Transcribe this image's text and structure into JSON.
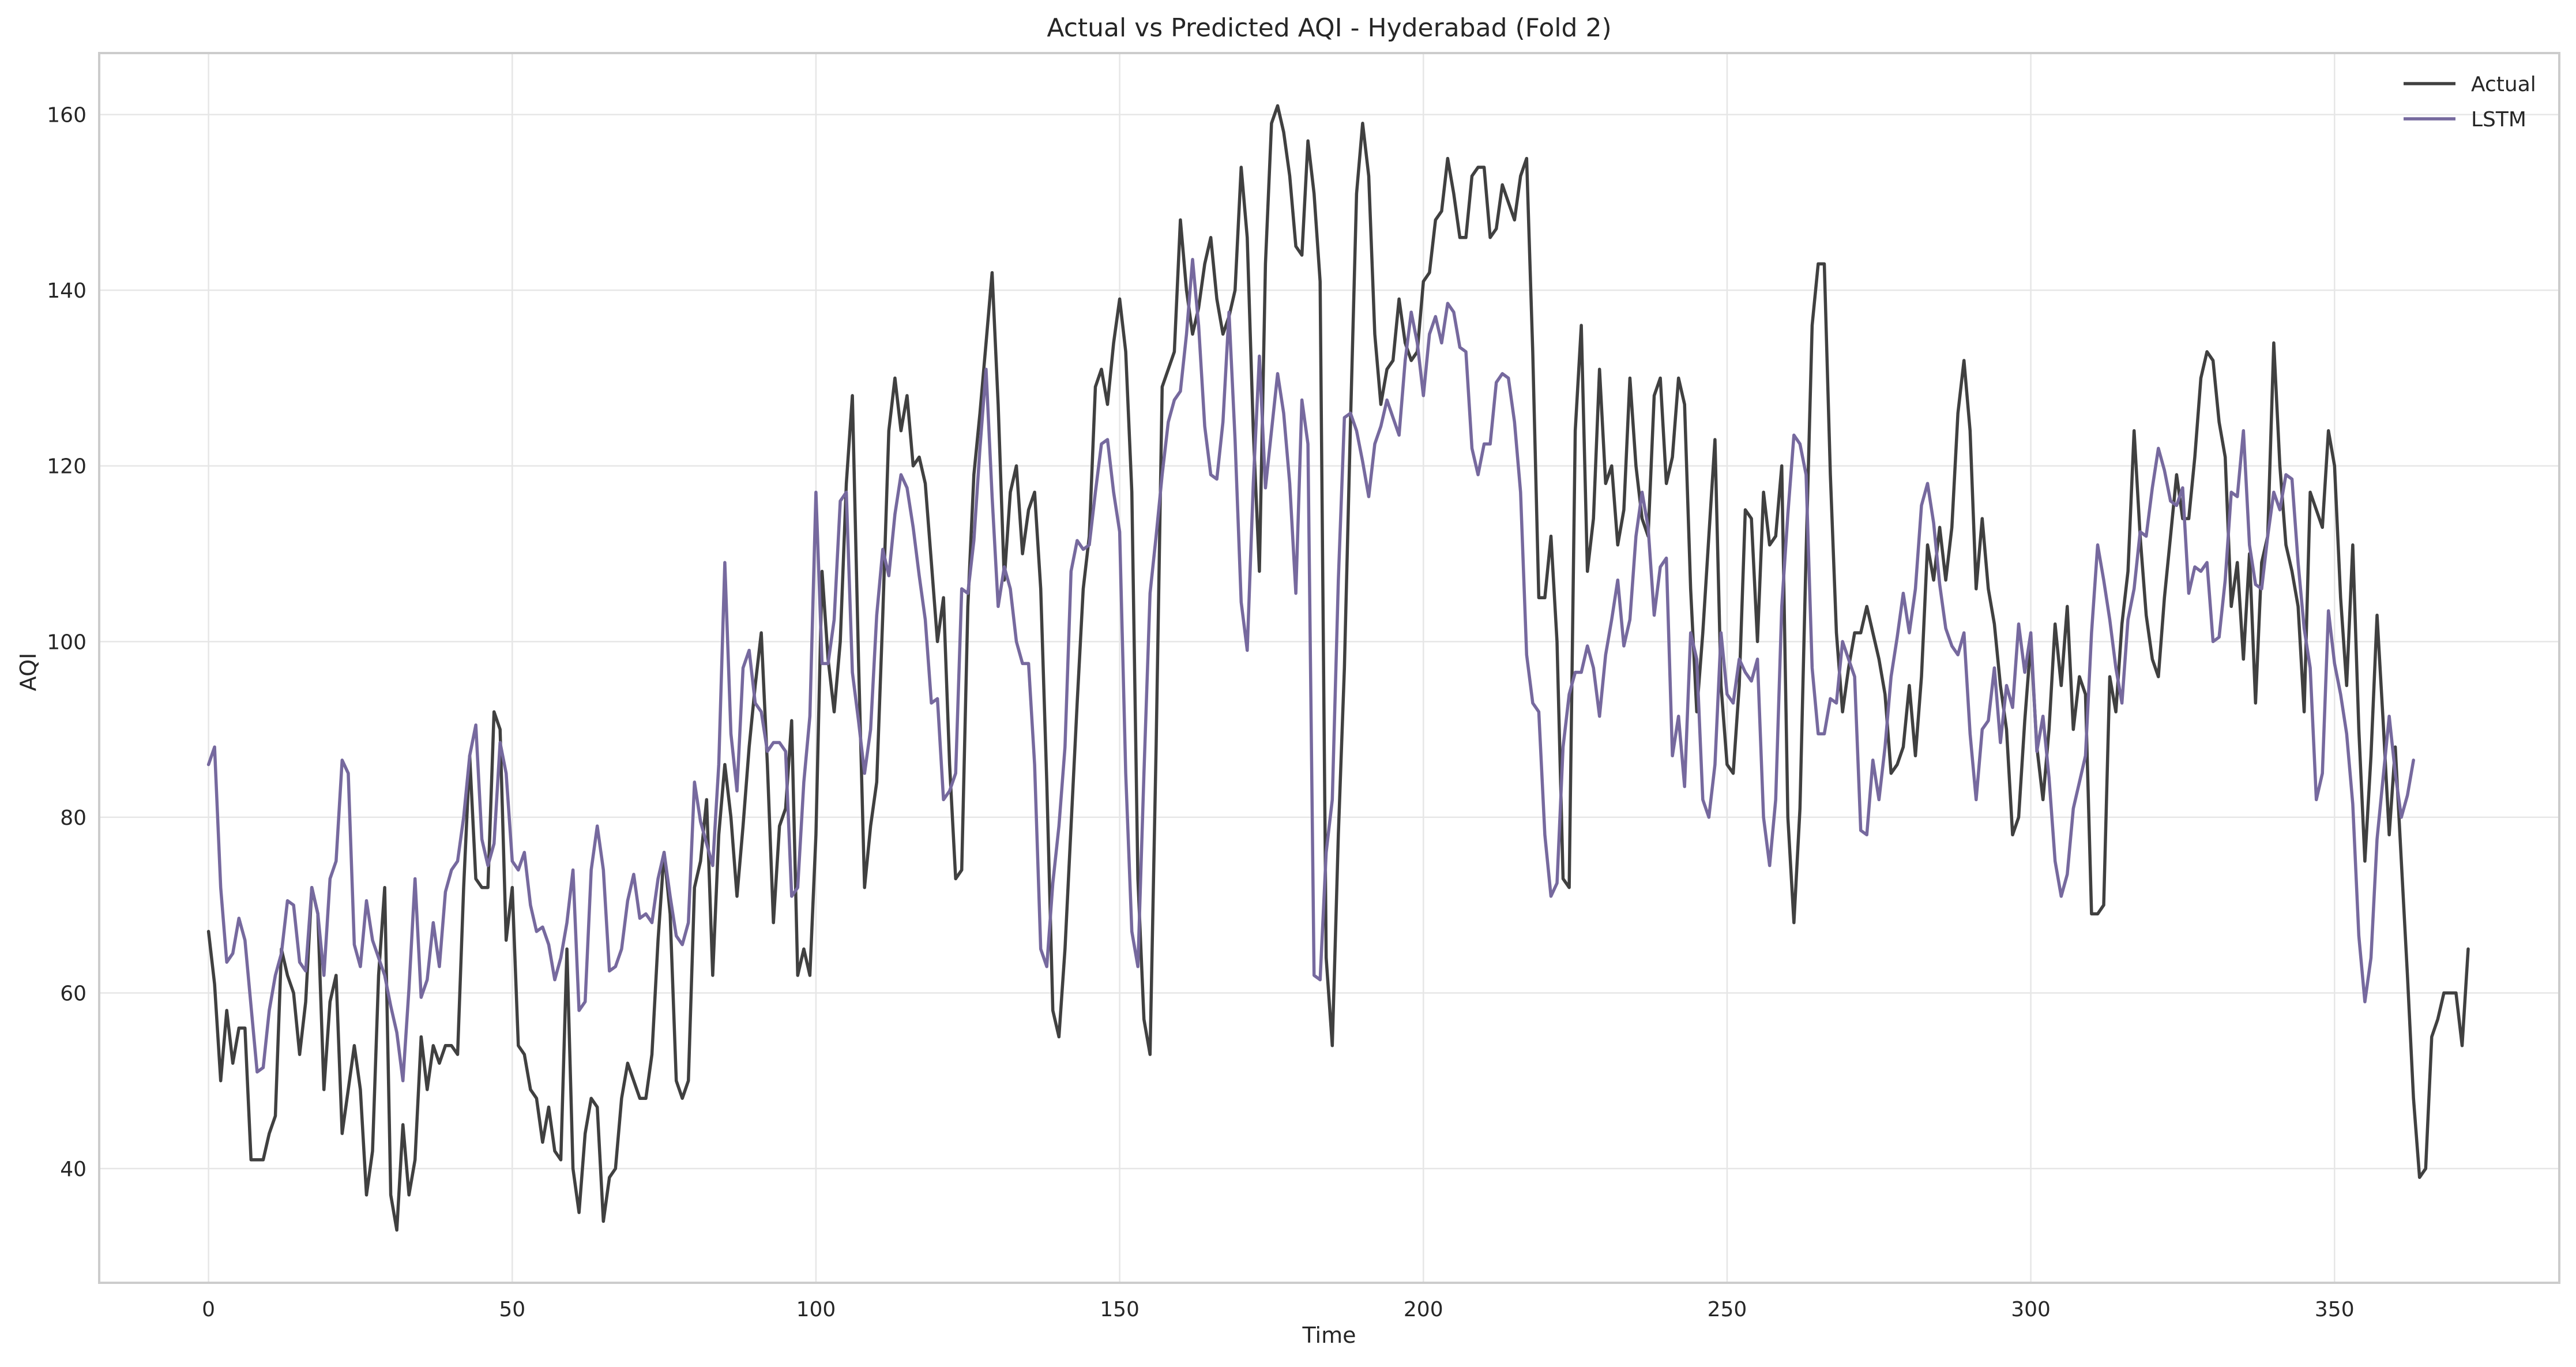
{
  "chart_data": {
    "type": "line",
    "title": "Actual vs Predicted AQI - Hyderabad (Fold 2)",
    "xlabel": "Time",
    "ylabel": "AQI",
    "xlim": [
      -18,
      387
    ],
    "ylim": [
      27,
      167
    ],
    "xticks": [
      0,
      50,
      100,
      150,
      200,
      250,
      300,
      350
    ],
    "yticks": [
      40,
      60,
      80,
      100,
      120,
      140,
      160
    ],
    "grid": true,
    "legend": "top-right",
    "series": [
      {
        "name": "Actual",
        "color": "#404040",
        "values": [
          67,
          61,
          50,
          58,
          52,
          56,
          56,
          41,
          41,
          41,
          44,
          46,
          65,
          62,
          60,
          53,
          59,
          72,
          69,
          49,
          59,
          62,
          44,
          49,
          54,
          49,
          37,
          42,
          62,
          72,
          37,
          33,
          45,
          37,
          41,
          55,
          49,
          54,
          52,
          54,
          54,
          53,
          72,
          87,
          73,
          72,
          72,
          92,
          90,
          66,
          72,
          54,
          53,
          49,
          48,
          43,
          47,
          42,
          41,
          65,
          40,
          35,
          44,
          48,
          47,
          34,
          39,
          40,
          48,
          52,
          50,
          48,
          48,
          53,
          66,
          76,
          69,
          50,
          48,
          50,
          72,
          75,
          82,
          62,
          78,
          86,
          80,
          71,
          79,
          88,
          95,
          101,
          86,
          68,
          79,
          81,
          91,
          62,
          65,
          62,
          78,
          108,
          98,
          92,
          100,
          118,
          128,
          98,
          72,
          79,
          84,
          103,
          124,
          130,
          124,
          128,
          120,
          121,
          118,
          109,
          100,
          105,
          86,
          73,
          74,
          104,
          119,
          126,
          134,
          142,
          127,
          107,
          117,
          120,
          110,
          115,
          117,
          106,
          84,
          58,
          55,
          65,
          79,
          93,
          106,
          112,
          129,
          131,
          127,
          134,
          139,
          133,
          117,
          73,
          57,
          53,
          88,
          129,
          131,
          133,
          148,
          140,
          135,
          138,
          143,
          146,
          139,
          135,
          137,
          140,
          154,
          146,
          124,
          108,
          143,
          159,
          161,
          158,
          153,
          145,
          144,
          157,
          151,
          141,
          64,
          54,
          78,
          97,
          125,
          151,
          159,
          153,
          135,
          127,
          131,
          132,
          139,
          134,
          132,
          133,
          141,
          142,
          148,
          149,
          155,
          151,
          146,
          146,
          153,
          154,
          154,
          146,
          147,
          152,
          150,
          148,
          153,
          155,
          133,
          105,
          105,
          112,
          100,
          73,
          72,
          124,
          136,
          108,
          114,
          131,
          118,
          120,
          111,
          115,
          130,
          120,
          114,
          112,
          128,
          130,
          118,
          121,
          130,
          127,
          106,
          92,
          101,
          112,
          123,
          95,
          86,
          85,
          95,
          115,
          114,
          100,
          117,
          111,
          112,
          120,
          80,
          68,
          81,
          110,
          136,
          143,
          143,
          119,
          101,
          92,
          97,
          101,
          101,
          104,
          101,
          98,
          94,
          85,
          86,
          88,
          95,
          87,
          96,
          111,
          107,
          113,
          107,
          113,
          126,
          132,
          124,
          106,
          114,
          106,
          102,
          95,
          90,
          78,
          80,
          91,
          100,
          88,
          82,
          90,
          102,
          95,
          104,
          90,
          96,
          94,
          69,
          69,
          70,
          96,
          92,
          102,
          108,
          124,
          112,
          103,
          98,
          96,
          105,
          112,
          119,
          114,
          114,
          121,
          130,
          133,
          132,
          125,
          121,
          104,
          109,
          98,
          110,
          93,
          109,
          112,
          134,
          120,
          111,
          108,
          104,
          92,
          117,
          115,
          113,
          124,
          120,
          105,
          95,
          111,
          90,
          75,
          87,
          103,
          91,
          78,
          88,
          75,
          62,
          48,
          39,
          40,
          55,
          57,
          60,
          60,
          60,
          54,
          65
        ]
      },
      {
        "name": "LSTM",
        "color": "#76699e",
        "values": [
          86,
          88,
          72,
          63.5,
          64.5,
          68.5,
          66,
          58.5,
          51,
          51.5,
          58,
          62,
          64.5,
          70.5,
          70,
          63.5,
          62.5,
          72,
          69,
          62,
          73,
          75,
          86.5,
          85,
          65.5,
          63,
          70.5,
          66,
          64,
          62,
          58.5,
          55.5,
          50,
          60.5,
          73,
          59.5,
          61.5,
          68,
          63,
          71.5,
          74,
          75,
          80,
          87,
          90.5,
          77.5,
          74.5,
          77,
          88.5,
          85,
          75,
          74,
          76,
          70,
          67,
          67.5,
          65.5,
          61.5,
          64,
          68,
          74,
          58,
          59,
          74,
          79,
          74,
          62.5,
          63,
          65,
          70.5,
          73.5,
          68.5,
          69,
          68,
          73,
          76,
          71,
          66.5,
          65.5,
          68,
          84,
          79.5,
          77,
          74.5,
          86,
          109,
          89.5,
          83,
          97,
          99,
          93,
          92,
          87.5,
          88.5,
          88.5,
          87.5,
          71,
          72,
          84,
          91.5,
          117,
          97.5,
          97.5,
          102.5,
          116,
          117,
          96.5,
          91,
          85,
          90,
          103,
          110.5,
          107.5,
          114.5,
          119,
          117.5,
          113,
          107.5,
          102.5,
          93,
          93.5,
          82,
          83,
          85,
          106,
          105.5,
          111.5,
          122,
          131,
          116.5,
          104,
          108.5,
          106,
          100,
          97.5,
          97.5,
          86,
          65,
          63,
          72.5,
          79,
          88,
          108,
          111.5,
          110.5,
          111,
          117,
          122.5,
          123,
          117,
          112.5,
          85,
          67,
          63,
          85,
          105.5,
          112,
          119,
          125,
          127.5,
          128.5,
          135,
          143.5,
          136,
          124.5,
          119,
          118.5,
          125,
          137.5,
          123,
          104.5,
          99,
          118,
          132.5,
          117.5,
          124,
          130.5,
          126,
          118,
          105.5,
          127.5,
          122.5,
          62,
          61.5,
          76,
          82,
          107,
          125.5,
          126,
          124,
          120.5,
          116.5,
          122.5,
          124.5,
          127.5,
          125.5,
          123.5,
          132,
          137.5,
          134,
          128,
          135,
          137,
          134,
          138.5,
          137.5,
          133.5,
          133,
          122,
          119,
          122.5,
          122.5,
          129.5,
          130.5,
          130,
          125,
          117,
          98.5,
          93,
          92,
          78,
          71,
          72.5,
          88,
          94,
          96.5,
          96.5,
          99.5,
          97,
          91.5,
          98.5,
          102.5,
          107,
          99.5,
          102.5,
          112,
          117,
          113,
          103,
          108.5,
          109.5,
          87,
          91.5,
          83.5,
          101,
          98,
          82,
          80,
          86,
          101,
          94,
          93,
          98,
          96.5,
          95.5,
          98,
          80,
          74.5,
          82,
          104,
          114.5,
          123.5,
          122.5,
          119,
          97,
          89.5,
          89.5,
          93.5,
          93,
          100,
          98,
          96,
          78.5,
          78,
          86.5,
          82,
          88,
          96,
          100.5,
          105.5,
          101,
          106,
          115.5,
          118,
          113.5,
          106.5,
          101.5,
          99.5,
          98.5,
          101,
          89.5,
          82,
          90,
          91,
          97,
          88.5,
          95,
          92.5,
          102,
          96.5,
          101,
          87.5,
          91.5,
          84.5,
          75,
          71,
          73.5,
          81,
          84,
          87,
          101,
          111,
          107,
          102.5,
          97,
          93,
          102.5,
          106,
          112.5,
          112,
          117.5,
          122,
          119.5,
          116,
          115.5,
          117.5,
          105.5,
          108.5,
          108,
          109,
          100,
          100.5,
          107,
          117,
          116.5,
          124,
          111,
          106.5,
          106,
          112,
          117,
          115,
          119,
          118.5,
          109,
          101.5,
          97,
          82,
          85,
          103.5,
          97.5,
          94,
          89.5,
          81.5,
          66.5,
          59,
          64,
          77.5,
          84.5,
          91.5,
          85,
          80,
          82.5,
          86.5
        ]
      }
    ]
  }
}
